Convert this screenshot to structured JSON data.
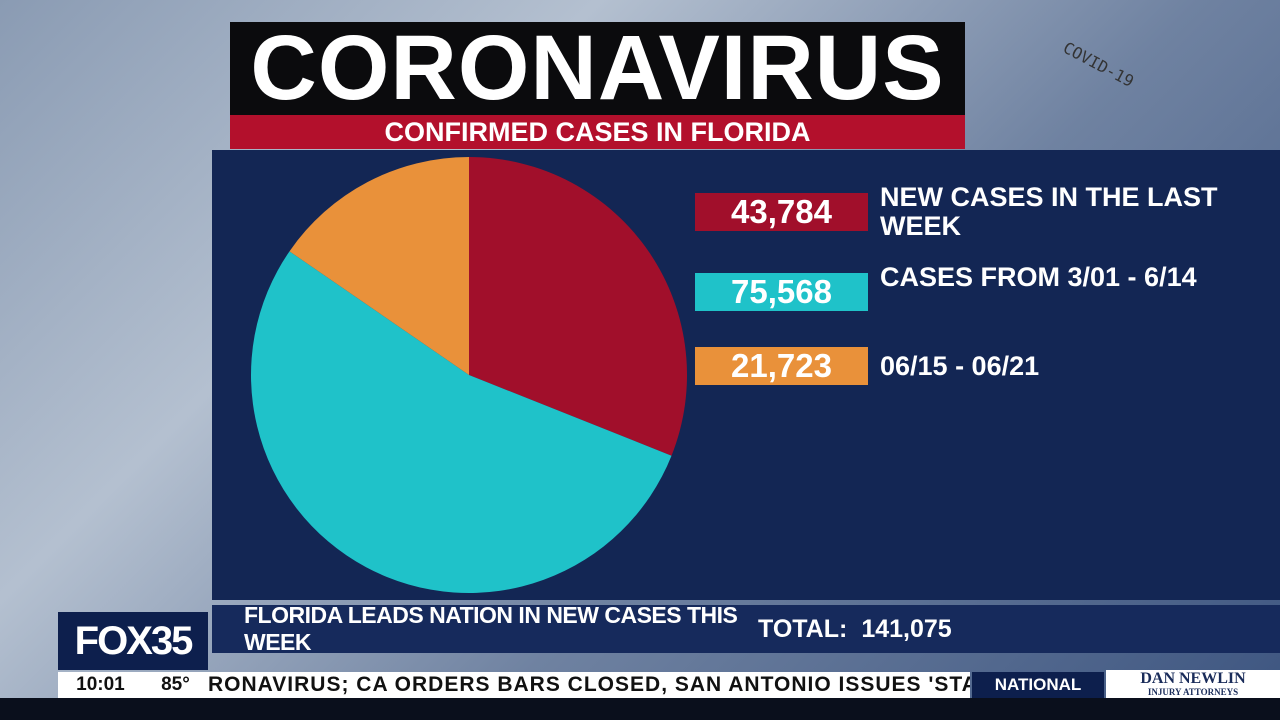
{
  "chart_data": {
    "type": "pie",
    "title": "CORONAVIRUS",
    "subtitle": "CONFIRMED CASES IN FLORIDA",
    "categories": [
      "NEW CASES IN THE LAST WEEK",
      "CASES FROM 3/01 - 6/14",
      "06/15 - 06/21"
    ],
    "values": [
      43784,
      75568,
      21723
    ],
    "value_labels": [
      "43,784",
      "75,568",
      "21,723"
    ],
    "colors": [
      "#a10f2b",
      "#1fc2c9",
      "#e9913a"
    ]
  },
  "lower_third": {
    "headline": "FLORIDA LEADS NATION IN NEW CASES THIS WEEK",
    "total_label": "TOTAL:",
    "total_value": "141,075"
  },
  "station": {
    "logo": "FOX35",
    "time": "10:01",
    "temperature": "85°"
  },
  "ticker": {
    "text": "RONAVIRUS; CA ORDERS BARS CLOSED, SAN ANTONIO ISSUES 'STAY",
    "section": "NATIONAL"
  },
  "sponsor": {
    "name": "DAN NEWLIN",
    "tagline": "INJURY ATTORNEYS"
  },
  "background": {
    "tube_label": "COVID-19"
  }
}
